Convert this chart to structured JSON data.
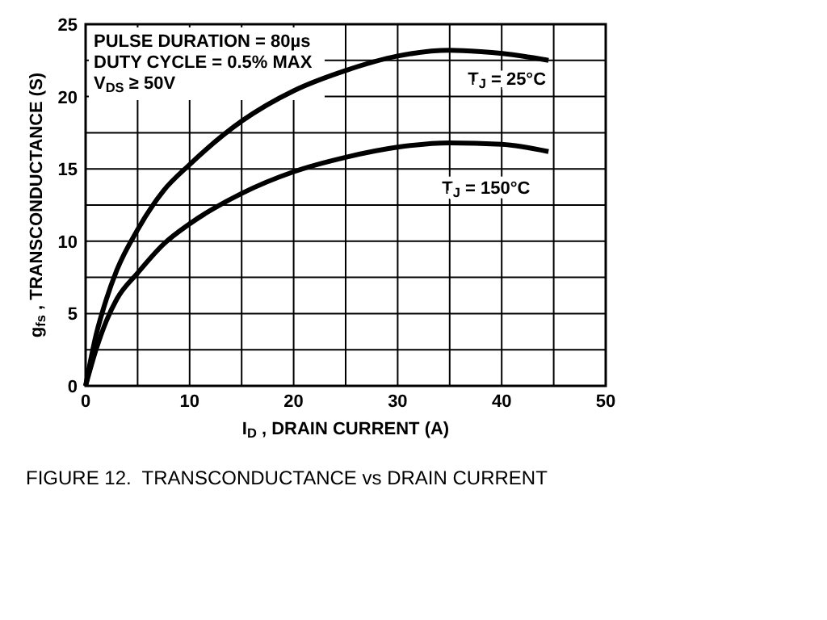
{
  "chart_data": {
    "type": "line",
    "title": "FIGURE 12.  TRANSCONDUCTANCE vs DRAIN CURRENT",
    "xlabel": "I$_{D}$, DRAIN CURRENT (A)",
    "ylabel": "g$_{fs}$, TRANSCONDUCTANCE (S)",
    "annotations": [
      "PULSE DURATION = 80µs",
      "DUTY CYCLE = 0.5% MAX",
      "V$_{DS}$ ≥ 50V"
    ],
    "series": [
      {
        "name": "T$_{J}$ = 25°C",
        "color": "#000000",
        "x": [
          0,
          1,
          2,
          3,
          5,
          7.5,
          10,
          15,
          20,
          25,
          30,
          35,
          38,
          42,
          44.5
        ],
        "values": [
          0,
          3.5,
          6,
          8,
          10.8,
          13.5,
          15.3,
          18.3,
          20.4,
          21.8,
          22.8,
          23.2,
          23.1,
          22.8,
          22.5
        ]
      },
      {
        "name": "T$_{J}$ = 150°C",
        "color": "#000000",
        "x": [
          0,
          1,
          2,
          3,
          5,
          7.5,
          10,
          15,
          20,
          25,
          30,
          35,
          40,
          44.5
        ],
        "values": [
          0,
          2.5,
          4.5,
          6,
          7.8,
          9.8,
          11.2,
          13.3,
          14.8,
          15.8,
          16.5,
          16.8,
          16.7,
          16.2
        ]
      }
    ],
    "xlim": [
      0,
      50
    ],
    "ylim": [
      0,
      25
    ],
    "xticks": [
      0,
      10,
      20,
      30,
      40,
      50
    ],
    "yticks": [
      0,
      5,
      10,
      15,
      20,
      25
    ],
    "grid": true,
    "marker": "none",
    "line_style": "solid"
  }
}
